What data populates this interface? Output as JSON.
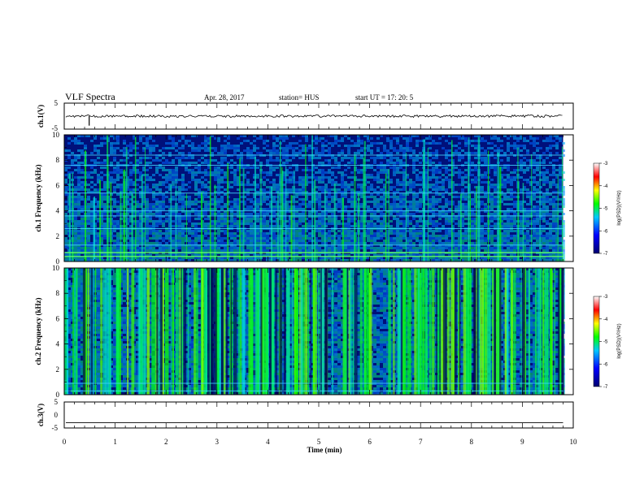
{
  "header": {
    "title": "VLF Spectra",
    "date": "Apr. 28, 2017",
    "station": "station= HUS",
    "start": "start  UT  =   17: 20: 5"
  },
  "colors": {
    "waveform": "#000000",
    "spectrogram_background": "#00107a",
    "colormap": [
      "#000070",
      "#0000ff",
      "#00c8ff",
      "#00ff00",
      "#ffff00",
      "#ff0000",
      "#ffffff"
    ]
  },
  "chart_data": [
    {
      "type": "line",
      "name": "panel-ch1-waveform",
      "ylabel": "ch.1(V)",
      "ylim": [
        -5,
        5
      ],
      "yticks": [
        5,
        -5
      ],
      "xlim": [
        0,
        10
      ],
      "baseline": 0,
      "spikes": [
        {
          "x": 0.49,
          "y": -2.4
        }
      ],
      "grid": false
    },
    {
      "type": "heatmap",
      "name": "panel-ch1-spectrogram",
      "ylabel": "ch.1 Frequency  (kHz)",
      "ylim": [
        0,
        10
      ],
      "yticks": [
        0,
        2,
        4,
        6,
        8,
        10
      ],
      "xlim": [
        0,
        9.8
      ],
      "colorbar": {
        "label": "log(PSD)(V²/Hz)",
        "range": [
          -7,
          -3
        ],
        "ticks": [
          "-3",
          "-4",
          "-5",
          "-6",
          "-7"
        ]
      },
      "horizontal_lines_khz": [
        0.4,
        0.7,
        1.3,
        2.6,
        3.6,
        4.0,
        5.4,
        7.6,
        8.4
      ],
      "grid": false
    },
    {
      "type": "heatmap",
      "name": "panel-ch2-spectrogram",
      "ylabel": "ch.2 Frequency  (kHz)",
      "ylim": [
        0,
        10
      ],
      "yticks": [
        0,
        2,
        4,
        6,
        8,
        10
      ],
      "xlim": [
        0,
        9.8
      ],
      "colorbar": {
        "label": "log(PSD)(V²/Hz)",
        "range": [
          -7,
          -3
        ],
        "ticks": [
          "-3",
          "-4",
          "-5",
          "-6",
          "-7"
        ]
      },
      "grid": false
    },
    {
      "type": "line",
      "name": "panel-ch3-waveform",
      "ylabel": "ch.3(V)",
      "ylim": [
        -5,
        5
      ],
      "yticks": [
        5,
        0,
        -5
      ],
      "xlim": [
        0,
        10
      ],
      "baseline": -3,
      "grid": false
    }
  ],
  "xaxis": {
    "label": "Time  (min)",
    "range": [
      0,
      10
    ],
    "ticks": [
      "0",
      "1",
      "2",
      "3",
      "4",
      "5",
      "6",
      "7",
      "8",
      "9",
      "10"
    ]
  }
}
